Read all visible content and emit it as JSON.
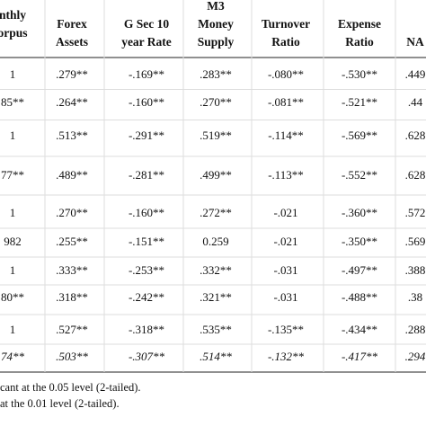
{
  "table": {
    "header": [
      [
        "nthly",
        "orpus"
      ],
      [
        "Forex",
        "Assets"
      ],
      [
        "G Sec 10",
        "year Rate"
      ],
      [
        "M3",
        "Money",
        "Supply"
      ],
      [
        "Turnover",
        "Ratio"
      ],
      [
        "Expense",
        "Ratio"
      ],
      [
        "NA"
      ]
    ],
    "rows": [
      [
        "1",
        ".279**",
        "-.169**",
        ".283**",
        "-.080**",
        "-.530**",
        ".449"
      ],
      [
        "85**",
        ".264**",
        "-.160**",
        ".270**",
        "-.081**",
        "-.521**",
        ".44"
      ],
      [
        "1",
        ".513**",
        "-.291**",
        ".519**",
        "-.114**",
        "-.569**",
        ".628"
      ],
      [
        "77**",
        ".489**",
        "-.281**",
        ".499**",
        "-.113**",
        "-.552**",
        ".628"
      ],
      [
        "1",
        ".270**",
        "-.160**",
        ".272**",
        "-.021",
        "-.360**",
        ".572"
      ],
      [
        "982",
        ".255**",
        "-.151**",
        "0.259",
        "-.021",
        "-.350**",
        ".569"
      ],
      [
        "1",
        ".333**",
        "-.253**",
        ".332**",
        "-.031",
        "-.497**",
        ".388"
      ],
      [
        "80**",
        ".318**",
        "-.242**",
        ".321**",
        "-.031",
        "-.488**",
        ".38"
      ],
      [
        "1",
        ".527**",
        "-.318**",
        ".535**",
        "-.135**",
        "-.434**",
        ".288"
      ],
      [
        "74**",
        ".503**",
        "-.307**",
        ".514**",
        "-.132**",
        "-.417**",
        ".294"
      ]
    ],
    "notes": [
      "cant at the 0.05 level (2-tailed).",
      "at the 0.01 level (2-tailed)."
    ]
  }
}
